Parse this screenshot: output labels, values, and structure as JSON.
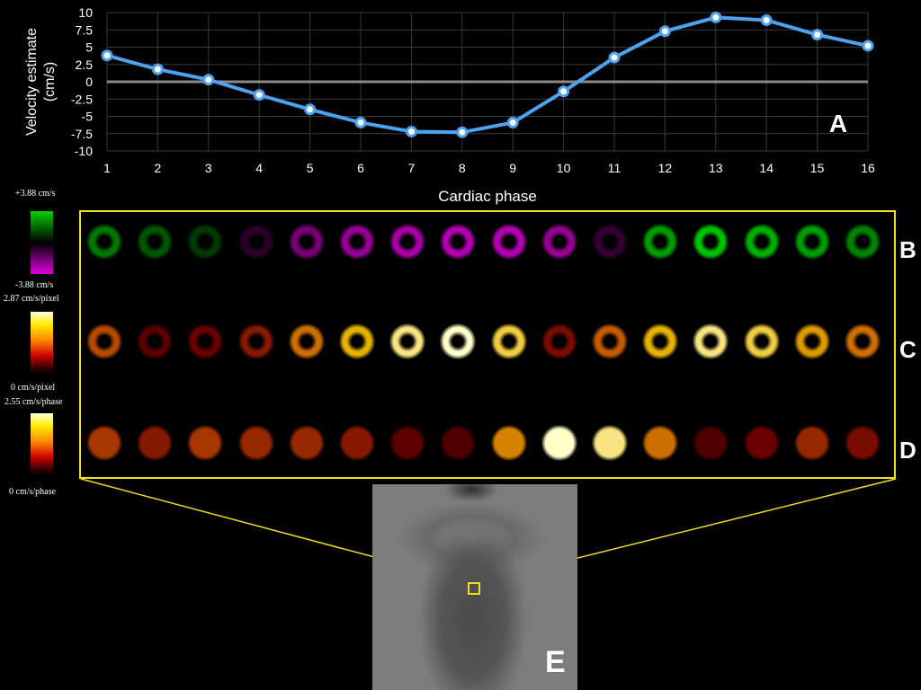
{
  "chart_data": {
    "type": "line",
    "title": "",
    "xlabel": "Cardiac phase",
    "ylabel_lines": [
      "Velocity estimate",
      "(cm/s)"
    ],
    "x": [
      1,
      2,
      3,
      4,
      5,
      6,
      7,
      8,
      9,
      10,
      11,
      12,
      13,
      14,
      15,
      16
    ],
    "values": [
      3.8,
      1.8,
      0.3,
      -1.9,
      -4.0,
      -5.9,
      -7.2,
      -7.3,
      -5.9,
      -1.4,
      3.5,
      7.3,
      9.3,
      8.9,
      6.8,
      5.2
    ],
    "xlim": [
      1,
      16
    ],
    "ylim": [
      -10,
      10
    ],
    "yticks": [
      10,
      7.5,
      5,
      2.5,
      0,
      -2.5,
      -5,
      -7.5,
      -10
    ],
    "ytick_labels": [
      "10",
      "7.5",
      "5",
      "2.5",
      "0",
      "-2.5",
      "-5",
      "-7.5",
      "-10"
    ],
    "xtick_labels": [
      "1",
      "2",
      "3",
      "4",
      "5",
      "6",
      "7",
      "8",
      "9",
      "10",
      "11",
      "12",
      "13",
      "14",
      "15",
      "16"
    ],
    "grid": true,
    "series_color": "#4da3ef",
    "zero_line_color": "#8a8a8a",
    "panel_label": "A"
  },
  "colorbars": {
    "b": {
      "top": "+3.88 cm/s",
      "bottom": "-3.88 cm/s"
    },
    "c": {
      "top": "2.87 cm/s/pixel",
      "bottom": "0 cm/s/pixel"
    },
    "d": {
      "top": "2.55 cm/s/phase",
      "bottom": "0 cm/s/phase"
    }
  },
  "row_labels": {
    "b": "B",
    "c": "C",
    "d": "D"
  },
  "row_b_values": [
    0.5,
    0.3,
    0.15,
    -0.05,
    -0.45,
    -0.6,
    -0.7,
    -0.75,
    -0.75,
    -0.6,
    -0.1,
    0.7,
    0.9,
    0.8,
    0.7,
    0.55
  ],
  "row_c_values": [
    0.6,
    0.3,
    0.35,
    0.45,
    0.7,
    0.85,
    0.95,
    1.0,
    0.9,
    0.4,
    0.65,
    0.85,
    0.95,
    0.9,
    0.8,
    0.7
  ],
  "row_d_values": [
    0.55,
    0.45,
    0.55,
    0.5,
    0.5,
    0.45,
    0.3,
    0.25,
    0.75,
    1.0,
    0.95,
    0.7,
    0.25,
    0.35,
    0.5,
    0.4
  ],
  "mri_label": "E",
  "colors": {
    "highlight": "#f0e020"
  }
}
